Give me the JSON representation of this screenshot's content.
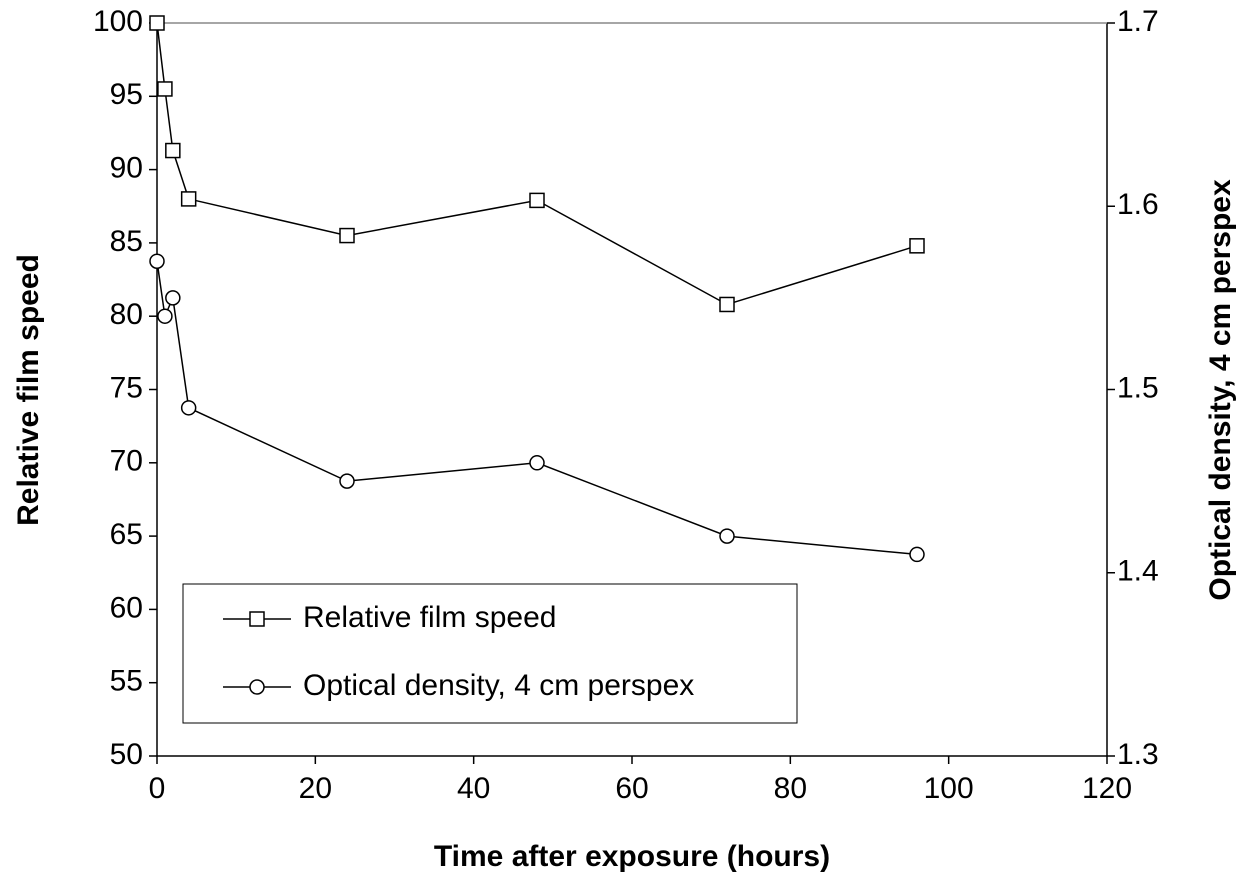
{
  "chart_data": {
    "type": "line",
    "xlabel": "Time after exposure (hours)",
    "ylabel": "Relative film speed",
    "y2label": "Optical density, 4 cm perspex",
    "x": [
      0,
      1,
      2,
      4,
      24,
      48,
      72,
      96
    ],
    "series": [
      {
        "name": "Relative film speed",
        "color": "#000000",
        "marker": "square",
        "values": [
          100,
          95.5,
          91.3,
          88,
          85.5,
          87.9,
          80.8,
          84.8
        ]
      },
      {
        "name": "Optical density, 4 cm perspex",
        "color": "#000000",
        "marker": "circle",
        "axis": "y2",
        "values": [
          1.57,
          1.54,
          1.55,
          1.49,
          1.45,
          1.46,
          1.42,
          1.41
        ]
      }
    ],
    "xlim": [
      0,
      120
    ],
    "xticks": [
      0,
      20,
      40,
      60,
      80,
      100,
      120
    ],
    "ylim": [
      50,
      100
    ],
    "yticks": [
      50,
      55,
      60,
      65,
      70,
      75,
      80,
      85,
      90,
      95,
      100
    ],
    "y2lim": [
      1.3,
      1.7
    ],
    "y2ticks": [
      1.3,
      1.4,
      1.5,
      1.6,
      1.7
    ],
    "grid": false,
    "legend": "lower left"
  }
}
